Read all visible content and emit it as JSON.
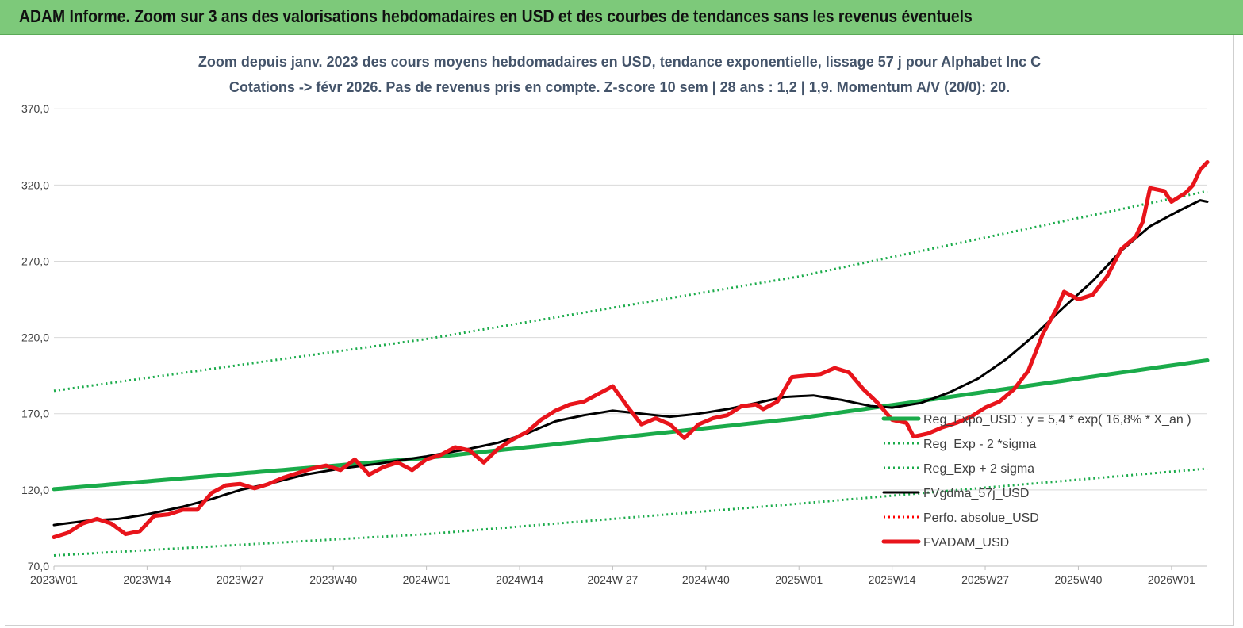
{
  "page": {
    "title": "ADAM Informe. Zoom sur 3 ans des valorisations hebdomadaires en USD et des courbes de tendances sans les revenus éventuels",
    "header_color": "#7dc97a"
  },
  "chart_data": {
    "type": "line",
    "title_line1": "Zoom depuis janv. 2023 des cours moyens hebdomadaires en USD, tendance exponentielle, lissage 57 j pour Alphabet Inc C",
    "title_line2": "Cotations -> févr 2026.  Pas de revenus pris en compte. Z-score 10 sem  | 28 ans : 1,2  | 1,9. Momentum A/V (20/0): 20.",
    "ylim": [
      70,
      380
    ],
    "yticks": [
      "70,0",
      "120,0",
      "170,0",
      "220,0",
      "270,0",
      "320,0",
      "370,0"
    ],
    "ytick_values": [
      70,
      120,
      170,
      220,
      270,
      320,
      370
    ],
    "x_count": 162,
    "xticks": [
      {
        "i": 0,
        "label": "2023W01"
      },
      {
        "i": 13,
        "label": "2023W14"
      },
      {
        "i": 26,
        "label": "2023W27"
      },
      {
        "i": 39,
        "label": "2023W40"
      },
      {
        "i": 52,
        "label": "2024W01"
      },
      {
        "i": 65,
        "label": "2024W14"
      },
      {
        "i": 78,
        "label": "2024W 27"
      },
      {
        "i": 91,
        "label": "2024W40"
      },
      {
        "i": 104,
        "label": "2025W01"
      },
      {
        "i": 117,
        "label": "2025W14"
      },
      {
        "i": 130,
        "label": "2025W27"
      },
      {
        "i": 143,
        "label": "2025W40"
      },
      {
        "i": 156,
        "label": "2026W01"
      }
    ],
    "grid": "horizontal",
    "legend_position": "right",
    "series": [
      {
        "key": "reg_expo",
        "name": "Reg_Expo_USD : y = 5,4 * exp( 16,8% *  X_an )",
        "color": "#1aab4a",
        "style": "solid-thick",
        "anchors": [
          [
            0,
            120.5
          ],
          [
            52,
            141
          ],
          [
            104,
            167
          ],
          [
            161,
            205
          ]
        ]
      },
      {
        "key": "reg_minus",
        "name": "Reg_Exp - 2 *sigma",
        "color": "#1aab4a",
        "style": "dotted",
        "anchors": [
          [
            0,
            77
          ],
          [
            52,
            91
          ],
          [
            104,
            111
          ],
          [
            161,
            134
          ]
        ]
      },
      {
        "key": "reg_plus",
        "name": "Reg_Exp + 2 sigma",
        "color": "#1aab4a",
        "style": "dotted",
        "anchors": [
          [
            0,
            185
          ],
          [
            52,
            219
          ],
          [
            104,
            260
          ],
          [
            161,
            316
          ]
        ]
      },
      {
        "key": "fvgdma",
        "name": "FVgdma_57j_USD",
        "color": "#000000",
        "style": "solid",
        "anchors": [
          [
            0,
            97
          ],
          [
            5,
            100
          ],
          [
            9,
            101
          ],
          [
            13,
            104
          ],
          [
            18,
            109
          ],
          [
            22,
            114
          ],
          [
            26,
            120
          ],
          [
            30,
            124
          ],
          [
            35,
            130
          ],
          [
            40,
            134
          ],
          [
            45,
            137
          ],
          [
            52,
            142
          ],
          [
            58,
            147
          ],
          [
            62,
            151
          ],
          [
            66,
            157
          ],
          [
            70,
            165
          ],
          [
            74,
            169
          ],
          [
            78,
            172
          ],
          [
            82,
            170
          ],
          [
            86,
            168
          ],
          [
            90,
            170
          ],
          [
            94,
            173
          ],
          [
            98,
            177
          ],
          [
            102,
            181
          ],
          [
            106,
            182
          ],
          [
            110,
            179
          ],
          [
            114,
            175
          ],
          [
            117,
            174
          ],
          [
            121,
            177
          ],
          [
            125,
            184
          ],
          [
            129,
            193
          ],
          [
            133,
            206
          ],
          [
            137,
            222
          ],
          [
            141,
            240
          ],
          [
            145,
            257
          ],
          [
            149,
            277
          ],
          [
            153,
            293
          ],
          [
            157,
            303
          ],
          [
            160,
            310
          ],
          [
            161,
            309
          ]
        ]
      },
      {
        "key": "perfo",
        "name": "Perfo. absolue_USD",
        "color": "#ff0000",
        "style": "dotted",
        "anchors": []
      },
      {
        "key": "fvadam",
        "name": "FVADAM_USD",
        "color": "#e8141b",
        "style": "solid-thick",
        "anchors": [
          [
            0,
            89
          ],
          [
            2,
            92
          ],
          [
            4,
            98
          ],
          [
            6,
            101
          ],
          [
            8,
            98
          ],
          [
            10,
            91
          ],
          [
            12,
            93
          ],
          [
            14,
            103
          ],
          [
            16,
            104
          ],
          [
            18,
            107
          ],
          [
            20,
            107
          ],
          [
            22,
            118
          ],
          [
            24,
            123
          ],
          [
            26,
            124
          ],
          [
            28,
            121
          ],
          [
            30,
            124
          ],
          [
            32,
            128
          ],
          [
            34,
            131
          ],
          [
            36,
            134
          ],
          [
            38,
            136
          ],
          [
            40,
            133
          ],
          [
            42,
            140
          ],
          [
            44,
            130
          ],
          [
            46,
            135
          ],
          [
            48,
            138
          ],
          [
            50,
            133
          ],
          [
            52,
            140
          ],
          [
            54,
            143
          ],
          [
            56,
            148
          ],
          [
            58,
            146
          ],
          [
            60,
            138
          ],
          [
            62,
            147
          ],
          [
            64,
            153
          ],
          [
            66,
            158
          ],
          [
            68,
            166
          ],
          [
            70,
            172
          ],
          [
            72,
            176
          ],
          [
            74,
            178
          ],
          [
            76,
            183
          ],
          [
            78,
            188
          ],
          [
            80,
            175
          ],
          [
            82,
            163
          ],
          [
            84,
            167
          ],
          [
            86,
            163
          ],
          [
            88,
            154
          ],
          [
            90,
            163
          ],
          [
            92,
            167
          ],
          [
            94,
            169
          ],
          [
            96,
            175
          ],
          [
            98,
            176
          ],
          [
            99,
            173
          ],
          [
            101,
            178
          ],
          [
            103,
            194
          ],
          [
            105,
            195
          ],
          [
            107,
            196
          ],
          [
            109,
            200
          ],
          [
            111,
            197
          ],
          [
            113,
            186
          ],
          [
            115,
            177
          ],
          [
            117,
            166
          ],
          [
            119,
            164
          ],
          [
            120,
            155
          ],
          [
            122,
            157
          ],
          [
            124,
            161
          ],
          [
            126,
            164
          ],
          [
            128,
            168
          ],
          [
            130,
            174
          ],
          [
            132,
            178
          ],
          [
            134,
            186
          ],
          [
            136,
            198
          ],
          [
            138,
            222
          ],
          [
            140,
            239
          ],
          [
            141,
            250
          ],
          [
            143,
            245
          ],
          [
            145,
            248
          ],
          [
            147,
            260
          ],
          [
            149,
            278
          ],
          [
            151,
            286
          ],
          [
            152,
            296
          ],
          [
            153,
            318
          ],
          [
            155,
            316
          ],
          [
            156,
            309
          ],
          [
            158,
            315
          ],
          [
            159,
            320
          ],
          [
            160,
            330
          ],
          [
            161,
            335
          ]
        ]
      }
    ]
  }
}
